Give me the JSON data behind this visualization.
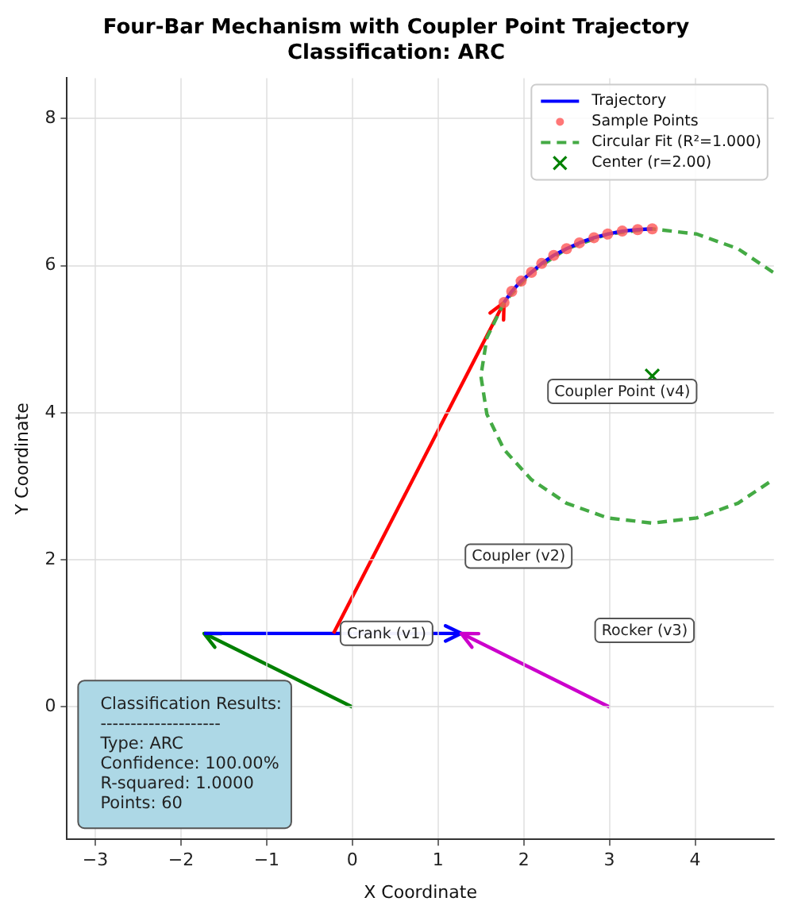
{
  "chart_data": {
    "type": "line",
    "title": "Four-Bar Mechanism with Coupler Point Trajectory",
    "subtitle": "Classification: ARC",
    "xlabel": "X Coordinate",
    "ylabel": "Y Coordinate",
    "xlim": [
      -3.33,
      4.92
    ],
    "ylim": [
      -1.8,
      8.55
    ],
    "xticks": [
      -3,
      -2,
      -1,
      0,
      1,
      2,
      3,
      4
    ],
    "yticks": [
      0,
      2,
      4,
      6,
      8
    ],
    "grid": true,
    "legend": "top right",
    "series": [
      {
        "type": "line",
        "name": "Trajectory",
        "color": "#0000ff",
        "line_style": "solid",
        "marker": "none",
        "x": [
          1.77,
          1.86,
          1.97,
          2.09,
          2.21,
          2.35,
          2.5,
          2.65,
          2.82,
          2.98,
          3.15,
          3.33,
          3.5
        ],
        "values": [
          5.5,
          5.65,
          5.79,
          5.91,
          6.03,
          6.14,
          6.23,
          6.31,
          6.38,
          6.43,
          6.47,
          6.49,
          6.5
        ]
      },
      {
        "type": "scatter",
        "name": "Sample Points",
        "color": "#ff5555",
        "marker": "circle",
        "x": [
          1.77,
          1.86,
          1.97,
          2.09,
          2.21,
          2.35,
          2.5,
          2.65,
          2.82,
          2.98,
          3.15,
          3.33,
          3.5
        ],
        "values": [
          5.5,
          5.65,
          5.79,
          5.91,
          6.03,
          6.14,
          6.23,
          6.31,
          6.38,
          6.43,
          6.47,
          6.49,
          6.5
        ]
      },
      {
        "type": "line",
        "name": "Circular Fit (R²=1.000)",
        "color": "#44aa44",
        "line_style": "dashed",
        "marker": "none",
        "x": [
          4.91,
          4.5,
          4.02,
          3.5,
          2.98,
          2.5,
          2.09,
          1.77,
          1.57,
          1.5,
          1.57,
          1.77,
          2.09,
          2.5,
          2.98,
          3.5,
          4.02,
          4.5,
          4.91
        ],
        "values": [
          5.91,
          6.23,
          6.43,
          6.5,
          6.43,
          6.23,
          5.91,
          5.5,
          5.02,
          4.5,
          3.98,
          3.5,
          3.09,
          2.77,
          2.57,
          2.5,
          2.57,
          2.77,
          3.09
        ]
      },
      {
        "type": "scatter",
        "name": "Center (r=2.00)",
        "color": "#008000",
        "marker": "cross",
        "x": [
          3.5
        ],
        "values": [
          4.5
        ]
      }
    ],
    "annotations": [
      "Crank (v1)",
      "Coupler (v2)",
      "Rocker (v3)",
      "Coupler Point (v4)",
      "Classification Results:\n--------------------\nType: ARC\nConfidence: 100.00%\nR-squared: 1.0000\nPoints: 60"
    ]
  }
}
